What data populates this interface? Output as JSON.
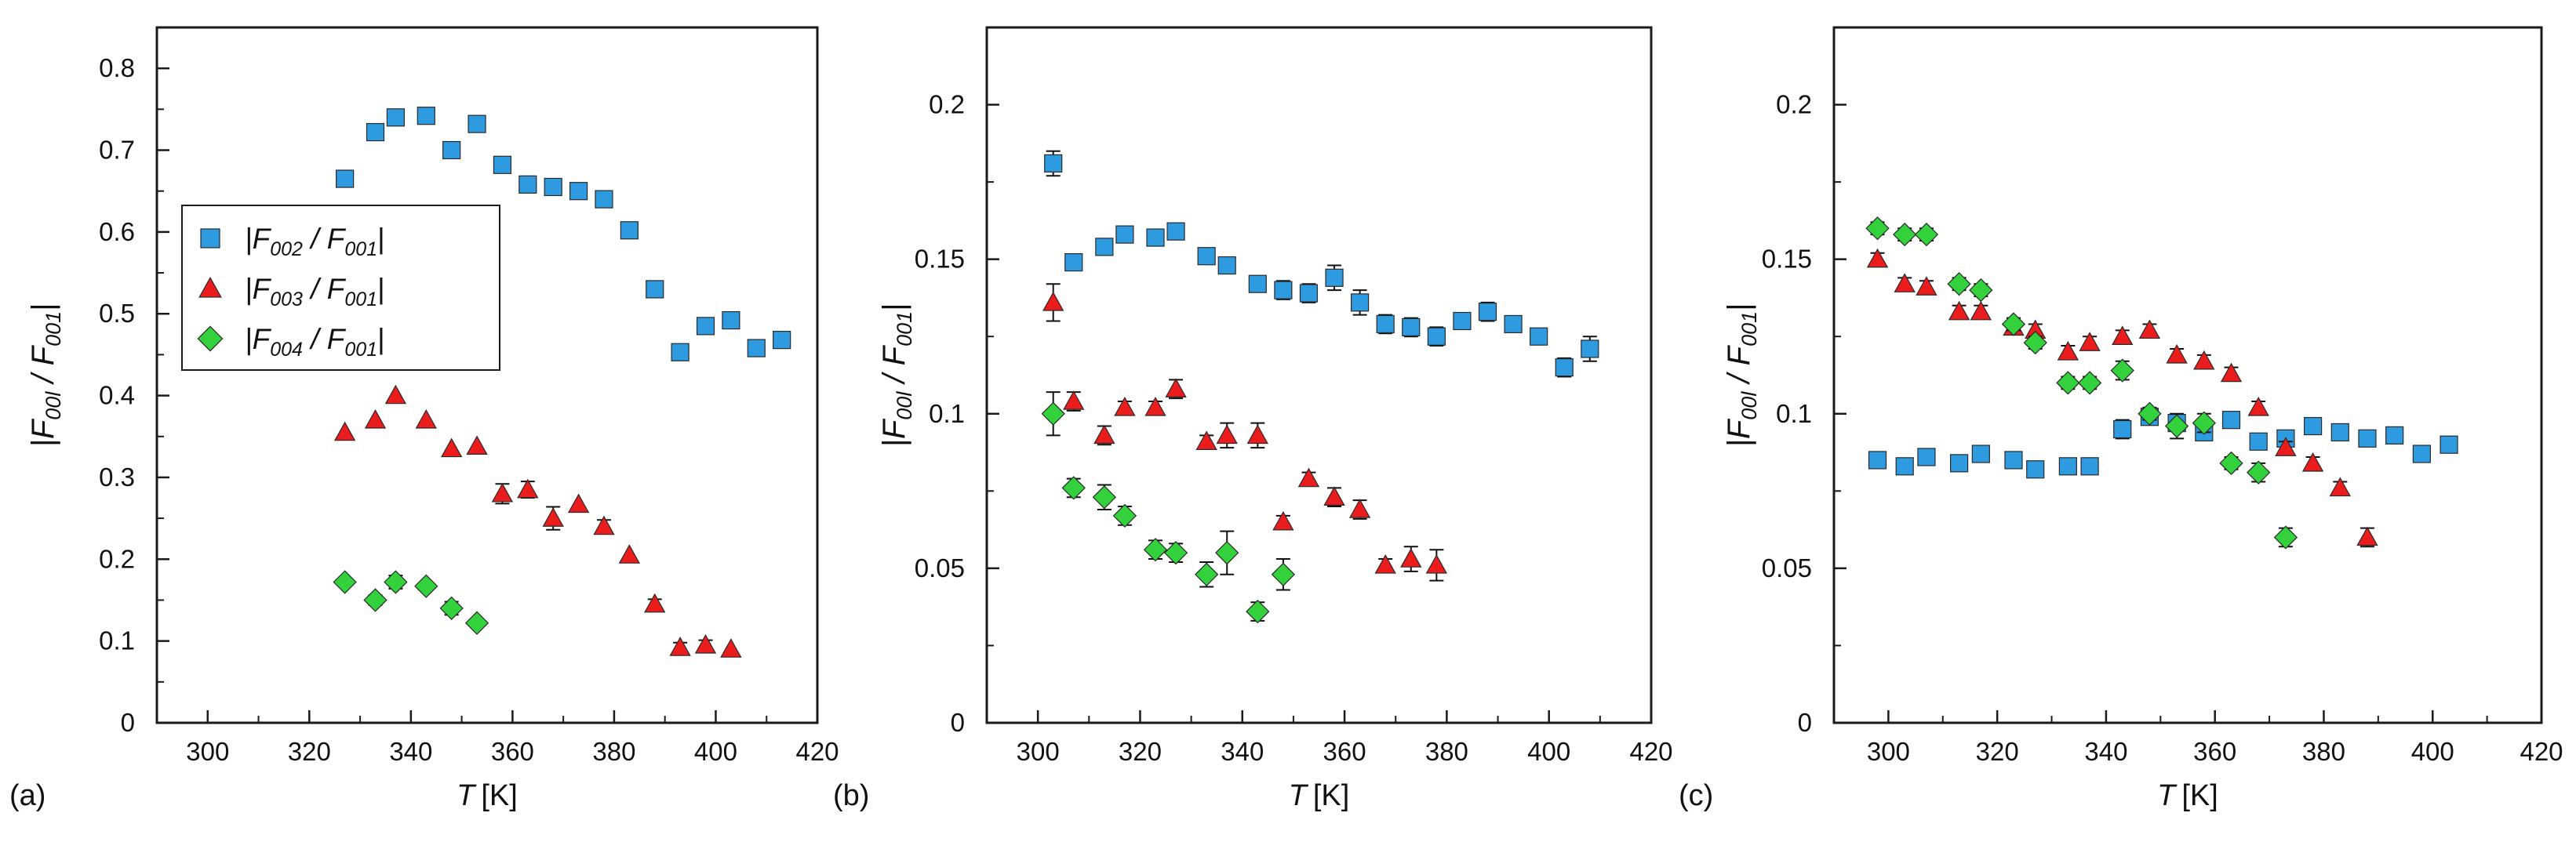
{
  "figure_title": "",
  "panel_tags": [
    "(a)",
    "(b)",
    "(c)"
  ],
  "colors": {
    "blue": "#2e9be0",
    "red": "#ea1c1c",
    "green": "#33d13b",
    "axis": "#1a1a1a",
    "marker_edge": "#2a2a2a",
    "error_bar": "#111111"
  },
  "icons": {
    "square_marker": "square-marker-icon",
    "triangle_marker": "triangle-marker-icon",
    "diamond_marker": "diamond-marker-icon"
  },
  "chart_data": [
    {
      "panel": "(a)",
      "type": "scatter",
      "xlabel_italic": "T",
      "xlabel_unit": "[K]",
      "ylabel_main": "|F",
      "ylabel_sub1": "00l",
      "ylabel_mid": " / F",
      "ylabel_sub2": "001",
      "ylabel_end": "|",
      "xlim": [
        290,
        420
      ],
      "ylim": [
        0,
        0.85
      ],
      "xticks": [
        300,
        320,
        340,
        360,
        380,
        400,
        420
      ],
      "yticks": [
        0,
        0.1,
        0.2,
        0.3,
        0.4,
        0.5,
        0.6,
        0.7,
        0.8
      ],
      "ytick_labels": [
        "0",
        "0.1",
        "0.2",
        "0.3",
        "0.4",
        "0.5",
        "0.6",
        "0.7",
        "0.8"
      ],
      "legend": {
        "position": "center-left",
        "entries": [
          {
            "marker": "square",
            "color": "blue",
            "text": "|F",
            "sub1": "002",
            "mid": " / F",
            "sub2": "001",
            "end": "|"
          },
          {
            "marker": "triangle",
            "color": "red",
            "text": "|F",
            "sub1": "003",
            "mid": " / F",
            "sub2": "001",
            "end": "|"
          },
          {
            "marker": "diamond",
            "color": "green",
            "text": "|F",
            "sub1": "004",
            "mid": " / F",
            "sub2": "001",
            "end": "|"
          }
        ]
      },
      "series": [
        {
          "name": "|F002 / F001|",
          "marker": "square",
          "color": "blue",
          "x": [
            327,
            333,
            337,
            343,
            348,
            353,
            358,
            363,
            368,
            373,
            378,
            383,
            388,
            393,
            398,
            403,
            408,
            413
          ],
          "y": [
            0.665,
            0.722,
            0.74,
            0.742,
            0.7,
            0.732,
            0.682,
            0.658,
            0.655,
            0.65,
            0.64,
            0.602,
            0.53,
            0.453,
            0.485,
            0.492,
            0.458,
            0.468
          ],
          "err": [
            0,
            0,
            0,
            0,
            0,
            0,
            0,
            0,
            0,
            0,
            0,
            0,
            0,
            0,
            0,
            0,
            0,
            0
          ]
        },
        {
          "name": "|F003 / F001|",
          "marker": "triangle",
          "color": "red",
          "x": [
            327,
            333,
            337,
            343,
            348,
            353,
            358,
            363,
            368,
            373,
            378,
            383,
            388,
            393,
            398,
            403
          ],
          "y": [
            0.355,
            0.37,
            0.4,
            0.37,
            0.335,
            0.338,
            0.28,
            0.285,
            0.25,
            0.267,
            0.24,
            0.205,
            0.145,
            0.092,
            0.095,
            0.09
          ],
          "err": [
            0,
            0,
            0,
            0,
            0,
            0,
            0.012,
            0.01,
            0.014,
            0,
            0.008,
            0,
            0.006,
            0.006,
            0.006,
            0
          ]
        },
        {
          "name": "|F004 / F001|",
          "marker": "diamond",
          "color": "green",
          "x": [
            327,
            333,
            337,
            343,
            348,
            353
          ],
          "y": [
            0.172,
            0.15,
            0.172,
            0.167,
            0.14,
            0.122
          ],
          "err": [
            0,
            0.006,
            0.008,
            0,
            0.008,
            0
          ]
        }
      ]
    },
    {
      "panel": "(b)",
      "type": "scatter",
      "xlabel_italic": "T",
      "xlabel_unit": "[K]",
      "ylabel_main": "|F",
      "ylabel_sub1": "00l",
      "ylabel_mid": " / F",
      "ylabel_sub2": "001",
      "ylabel_end": "|",
      "xlim": [
        290,
        420
      ],
      "ylim": [
        0,
        0.225
      ],
      "xticks": [
        300,
        320,
        340,
        360,
        380,
        400,
        420
      ],
      "yticks": [
        0,
        0.05,
        0.1,
        0.15,
        0.2
      ],
      "ytick_labels": [
        "0",
        "0.05",
        "0.1",
        "0.15",
        "0.2"
      ],
      "series": [
        {
          "name": "|F002 / F001|",
          "marker": "square",
          "color": "blue",
          "x": [
            303,
            307,
            313,
            317,
            323,
            327,
            333,
            337,
            343,
            348,
            353,
            358,
            363,
            368,
            373,
            378,
            383,
            388,
            393,
            398,
            403,
            408
          ],
          "y": [
            0.181,
            0.149,
            0.154,
            0.158,
            0.157,
            0.159,
            0.151,
            0.148,
            0.142,
            0.14,
            0.139,
            0.144,
            0.136,
            0.129,
            0.128,
            0.125,
            0.13,
            0.133,
            0.129,
            0.125,
            0.115,
            0.121
          ],
          "err": [
            0.004,
            0.002,
            0.002,
            0.002,
            0.002,
            0.002,
            0.002,
            0.002,
            0.002,
            0.003,
            0.003,
            0.004,
            0.004,
            0.003,
            0.003,
            0.003,
            0.002,
            0.003,
            0.002,
            0.002,
            0.003,
            0.004
          ]
        },
        {
          "name": "|F003 / F001|",
          "marker": "triangle",
          "color": "red",
          "x": [
            303,
            307,
            313,
            317,
            323,
            327,
            333,
            337,
            343,
            348,
            353,
            358,
            363,
            368,
            373,
            378
          ],
          "y": [
            0.136,
            0.104,
            0.093,
            0.102,
            0.102,
            0.108,
            0.091,
            0.093,
            0.093,
            0.065,
            0.079,
            0.073,
            0.069,
            0.051,
            0.053,
            0.051
          ],
          "err": [
            0.006,
            0.003,
            0.003,
            0.002,
            0.002,
            0.003,
            0.002,
            0.004,
            0.004,
            0.002,
            0.002,
            0.003,
            0.003,
            0.002,
            0.004,
            0.005
          ]
        },
        {
          "name": "|F004 / F001|",
          "marker": "diamond",
          "color": "green",
          "x": [
            303,
            307,
            313,
            317,
            323,
            327,
            333,
            337,
            343,
            348
          ],
          "y": [
            0.1,
            0.076,
            0.073,
            0.067,
            0.056,
            0.055,
            0.048,
            0.055,
            0.036,
            0.048
          ],
          "err": [
            0.007,
            0.003,
            0.004,
            0.003,
            0.003,
            0.003,
            0.004,
            0.007,
            0.003,
            0.005
          ]
        }
      ]
    },
    {
      "panel": "(c)",
      "type": "scatter",
      "xlabel_italic": "T",
      "xlabel_unit": "[K]",
      "ylabel_main": "|F",
      "ylabel_sub1": "00l",
      "ylabel_mid": " / F",
      "ylabel_sub2": "001",
      "ylabel_end": "|",
      "xlim": [
        290,
        420
      ],
      "ylim": [
        0,
        0.225
      ],
      "xticks": [
        300,
        320,
        340,
        360,
        380,
        400,
        420
      ],
      "yticks": [
        0,
        0.05,
        0.1,
        0.15,
        0.2
      ],
      "ytick_labels": [
        "0",
        "0.05",
        "0.1",
        "0.15",
        "0.2"
      ],
      "series": [
        {
          "name": "|F002 / F001|",
          "marker": "square",
          "color": "blue",
          "x": [
            298,
            303,
            307,
            313,
            317,
            323,
            327,
            333,
            337,
            343,
            348,
            353,
            358,
            363,
            368,
            373,
            378,
            383,
            388,
            393,
            398,
            403
          ],
          "y": [
            0.085,
            0.083,
            0.086,
            0.084,
            0.087,
            0.085,
            0.082,
            0.083,
            0.083,
            0.095,
            0.099,
            0.097,
            0.094,
            0.098,
            0.091,
            0.092,
            0.096,
            0.094,
            0.092,
            0.093,
            0.087,
            0.09
          ],
          "err": [
            0.002,
            0.002,
            0.002,
            0.002,
            0.002,
            0.002,
            0.002,
            0.002,
            0.002,
            0.003,
            0.002,
            0.002,
            0.002,
            0.002,
            0.002,
            0.002,
            0.002,
            0.002,
            0.002,
            0.002,
            0.002,
            0.002
          ]
        },
        {
          "name": "|F003 / F001|",
          "marker": "triangle",
          "color": "red",
          "x": [
            298,
            303,
            307,
            313,
            317,
            323,
            327,
            333,
            337,
            343,
            348,
            353,
            358,
            363,
            368,
            373,
            378,
            383,
            388
          ],
          "y": [
            0.15,
            0.142,
            0.141,
            0.133,
            0.133,
            0.128,
            0.127,
            0.12,
            0.123,
            0.125,
            0.127,
            0.119,
            0.117,
            0.113,
            0.102,
            0.089,
            0.084,
            0.076,
            0.06
          ],
          "err": [
            0.002,
            0.002,
            0.002,
            0.002,
            0.002,
            0.002,
            0.002,
            0.002,
            0.002,
            0.002,
            0.002,
            0.002,
            0.002,
            0.002,
            0.002,
            0.002,
            0.002,
            0.002,
            0.003
          ]
        },
        {
          "name": "|F004 / F001|",
          "marker": "diamond",
          "color": "green",
          "x": [
            298,
            303,
            307,
            313,
            317,
            323,
            327,
            333,
            337,
            343,
            348,
            353,
            358,
            363,
            368,
            373
          ],
          "y": [
            0.16,
            0.158,
            0.158,
            0.142,
            0.14,
            0.129,
            0.123,
            0.11,
            0.11,
            0.114,
            0.1,
            0.096,
            0.097,
            0.084,
            0.081,
            0.06
          ],
          "err": [
            0.002,
            0.002,
            0.002,
            0.002,
            0.002,
            0.002,
            0.002,
            0.002,
            0.002,
            0.003,
            0.002,
            0.004,
            0.003,
            0.002,
            0.003,
            0.003
          ]
        }
      ]
    }
  ]
}
